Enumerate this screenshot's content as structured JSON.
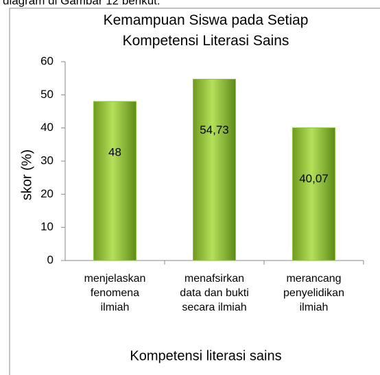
{
  "caption": "diagram di Gambar 12 berikut.",
  "chart_data": {
    "type": "bar",
    "title": "Kemampuan Siswa pada Setiap Kompetensi Literasi Sains",
    "x_label": "Kompetensi literasi sains",
    "y_label": "skor (%)",
    "categories": [
      "menjelaskan fenomena ilmiah",
      "menafsirkan data dan bukti secara ilmiah",
      "merancang penyelidikan ilmiah"
    ],
    "values": [
      48,
      54.73,
      40.07
    ],
    "value_labels": [
      "48",
      "54,73",
      "40,07"
    ],
    "color": "#8dc63f",
    "ylim": [
      0,
      60
    ],
    "yticks": [
      0,
      10,
      20,
      30,
      40,
      50,
      60
    ],
    "grid": false
  }
}
